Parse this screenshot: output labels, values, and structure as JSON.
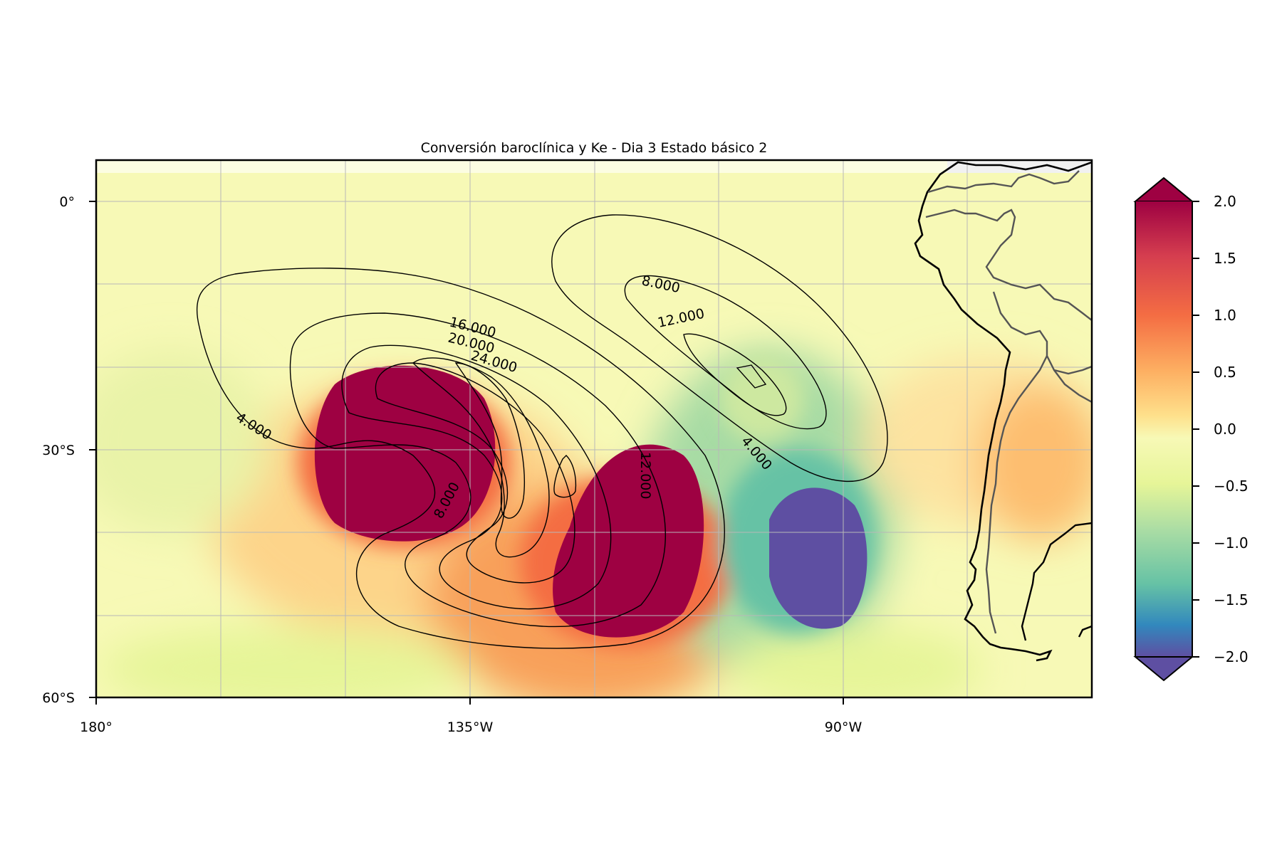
{
  "title": "Conversión baroclínica y Ke - Dia 3 Estado básico 2",
  "map": {
    "lon_ticks": [
      {
        "lon": -180,
        "label": "180°"
      },
      {
        "lon": -135,
        "label": "135°W"
      },
      {
        "lon": -90,
        "label": "90°W"
      }
    ],
    "lat_ticks": [
      {
        "lat": 0,
        "label": "0°"
      },
      {
        "lat": -30,
        "label": "30°S"
      },
      {
        "lat": -60,
        "label": "60°S"
      }
    ],
    "extent": {
      "lon": [
        -180,
        -60
      ],
      "lat": [
        -60,
        5
      ]
    },
    "gridlines": true
  },
  "colorbar": {
    "ticks": [
      "2.0",
      "1.5",
      "1.0",
      "0.5",
      "0.0",
      "−0.5",
      "−1.0",
      "−1.5",
      "−2.0"
    ],
    "range": [
      -2.0,
      2.0
    ],
    "colormap": "Spectral_r",
    "extend": "both"
  },
  "contour_labels": [
    "4.000",
    "8.000",
    "12.000",
    "16.000",
    "20.000",
    "24.000",
    "4.000",
    "8.000",
    "12.000"
  ],
  "colors": {
    "positive": "#9e0142",
    "negative": "#5e4fa2",
    "neutral": "#f7f9b6",
    "land_outline": "#000000",
    "border": "#555555"
  }
}
